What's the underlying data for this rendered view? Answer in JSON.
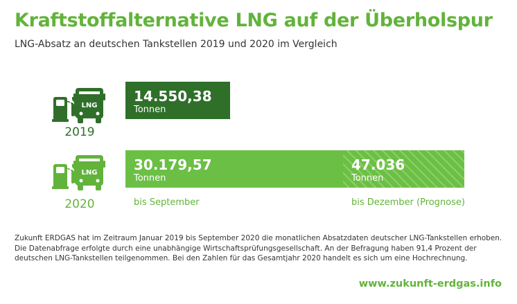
{
  "title": "Kraftstoffalternative LNG auf der Überholspur",
  "subtitle": "LNG-Absatz an deutschen Tankstellen 2019 und 2020 im Vergleich",
  "colors": {
    "brand": "#62b33b",
    "dark_bar": "#2f6f2a",
    "light_bar": "#6bbf45",
    "icon_dark": "#2f6f2a",
    "icon_light": "#62b33b"
  },
  "icon_names": [
    "fuel-pump-icon",
    "bus-icon"
  ],
  "bus_label": "LNG",
  "chart_data": {
    "type": "bar",
    "orientation": "horizontal",
    "unit": "Tonnen",
    "rows": [
      {
        "year": "2019",
        "segments": [
          {
            "value": 14550.38,
            "label": "14.550,38",
            "unit": "Tonnen",
            "caption": "",
            "style": "solid-dark"
          }
        ]
      },
      {
        "year": "2020",
        "segments": [
          {
            "value": 30179.57,
            "label": "30.179,57",
            "unit": "Tonnen",
            "caption": "bis September",
            "style": "solid-light"
          },
          {
            "value": 47036,
            "label": "47.036",
            "unit": "Tonnen",
            "caption": "bis Dezember (Prognose)",
            "style": "hatched-light"
          }
        ]
      }
    ]
  },
  "note": "Zukunft ERDGAS hat im Zeitraum Januar 2019 bis September 2020 die monatlichen Absatzdaten deutscher LNG-Tankstellen erhoben. Die Datenabfrage erfolgte durch eine unabhängige Wirtschaftsprüfungsgesellschaft. An der Befragung haben 91,4 Prozent der deutschen LNG-Tankstellen teilgenommen. Bei den Zahlen für das Gesamtjahr 2020 handelt es sich um eine Hochrechnung.",
  "footer_link": "www.zukunft-erdgas.info"
}
